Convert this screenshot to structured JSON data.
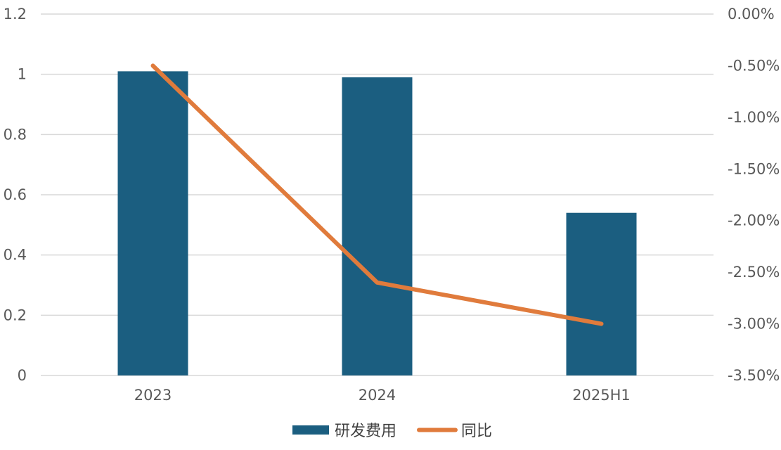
{
  "chart_data": {
    "type": "bar",
    "categories": [
      "2023",
      "2024",
      "2025H1"
    ],
    "series": [
      {
        "name": "研发费用",
        "type": "bar",
        "axis": "left",
        "color": "#1b5e80",
        "values": [
          1.01,
          0.99,
          0.54
        ]
      },
      {
        "name": "同比",
        "type": "line",
        "axis": "right",
        "color": "#e07b3c",
        "values": [
          -0.5,
          -2.6,
          -3.0
        ]
      }
    ],
    "y_left": {
      "min": 0,
      "max": 1.2,
      "ticks": [
        0,
        0.2,
        0.4,
        0.6,
        0.8,
        1,
        1.2
      ],
      "tick_labels": [
        "0",
        "0.2",
        "0.4",
        "0.6",
        "0.8",
        "1",
        "1.2"
      ]
    },
    "y_right": {
      "min": -3.5,
      "max": 0,
      "unit": "%",
      "ticks": [
        0,
        -0.5,
        -1.0,
        -1.5,
        -2.0,
        -2.5,
        -3.0,
        -3.5
      ],
      "tick_labels": [
        "0.00%",
        "-0.50%",
        "-1.00%",
        "-1.50%",
        "-2.00%",
        "-2.50%",
        "-3.00%",
        "-3.50%"
      ]
    },
    "grid": true,
    "legend_position": "bottom",
    "title": "",
    "xlabel": "",
    "ylabel": ""
  }
}
